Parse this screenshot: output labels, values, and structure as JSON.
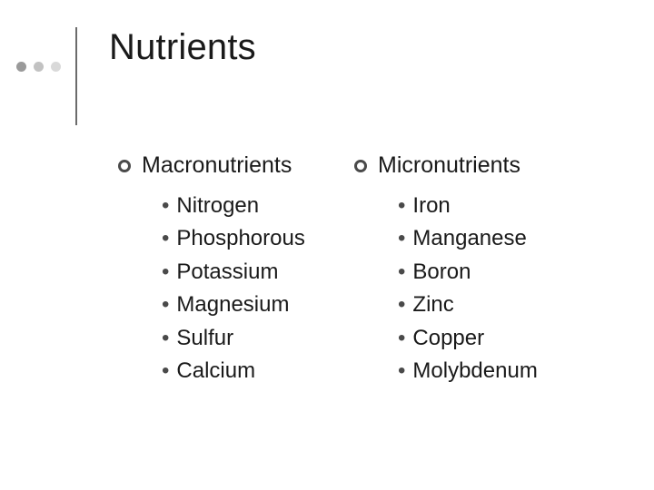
{
  "title": "Nutrients",
  "decor": {
    "dot_colors": [
      "#9a9a9a",
      "#c2c2c2",
      "#d9d9d9"
    ],
    "vline_color": "#6b6b6b"
  },
  "columns": [
    {
      "heading": "Macronutrients",
      "items": [
        "Nitrogen",
        "Phosphorous",
        "Potassium",
        "Magnesium",
        "Sulfur",
        "Calcium"
      ]
    },
    {
      "heading": "Micronutrients",
      "items": [
        "Iron",
        "Manganese",
        "Boron",
        "Zinc",
        "Copper",
        "Molybdenum"
      ]
    }
  ],
  "style": {
    "background": "#ffffff",
    "text_color": "#1a1a1a",
    "ring_color": "#4a4a4a",
    "bullet_color": "#4a4a4a",
    "title_fontsize": 40,
    "heading_fontsize": 25,
    "item_fontsize": 24
  }
}
